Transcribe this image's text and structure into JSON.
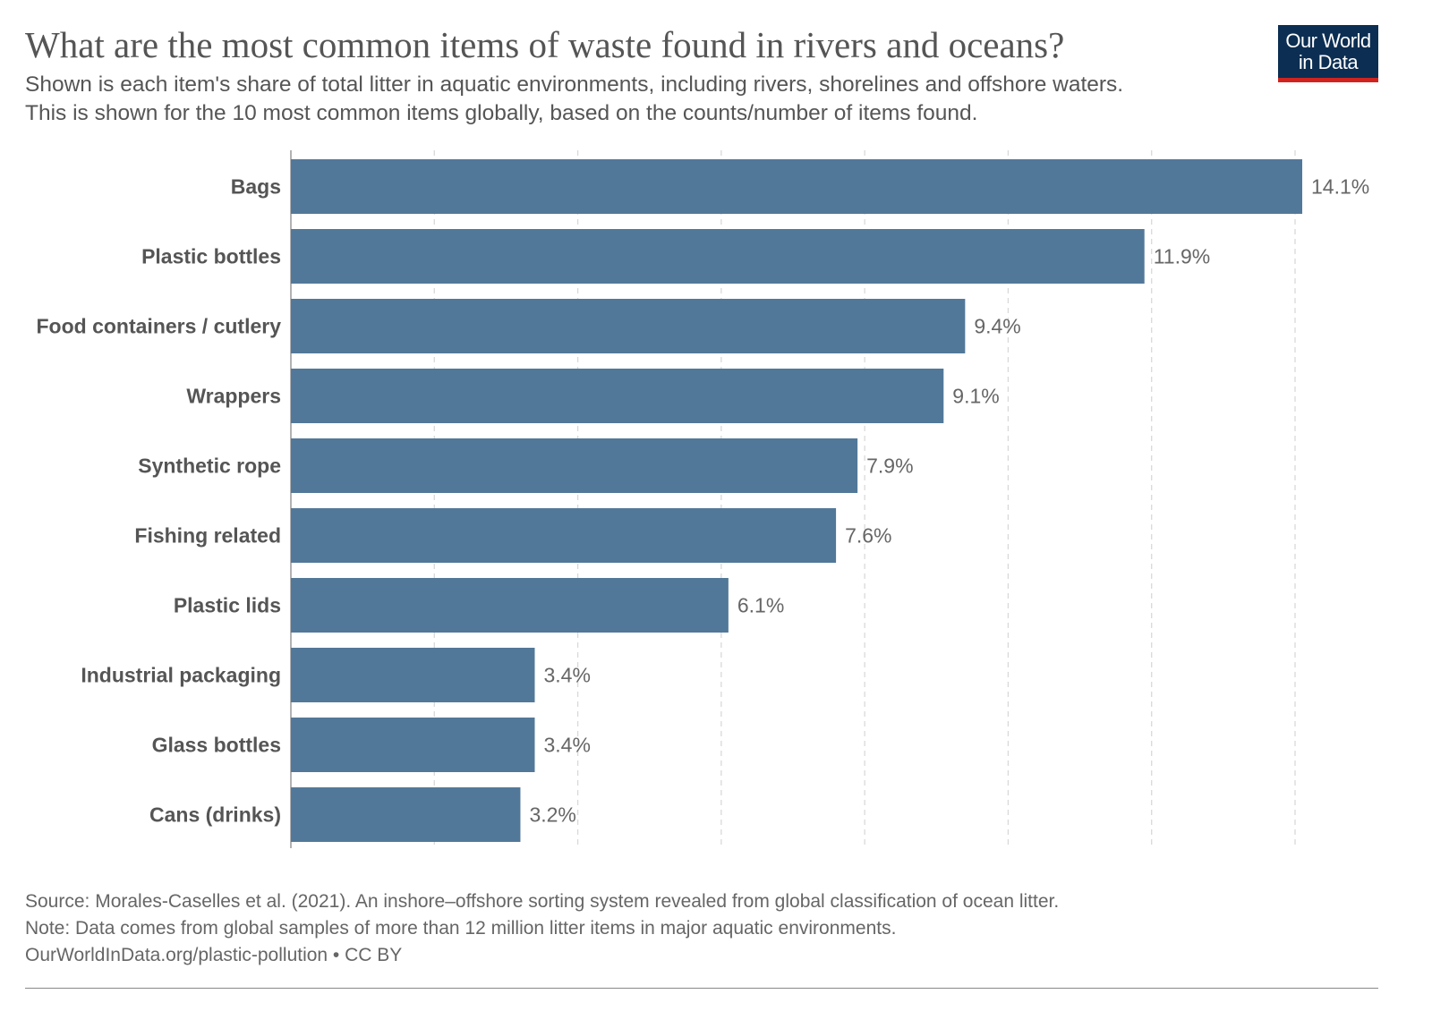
{
  "header": {
    "title": "What are the most common items of waste found in rivers and oceans?",
    "subtitle_line1": "Shown is each item's share of total litter in aquatic environments, including rivers, shorelines and offshore waters.",
    "subtitle_line2": "This is shown for the 10 most common items globally, based on the counts/number of items found."
  },
  "logo": {
    "line1": "Our World",
    "line2": "in Data",
    "bg": "#0c2e52",
    "accent": "#d0231f"
  },
  "chart_data": {
    "type": "bar",
    "orientation": "horizontal",
    "categories": [
      "Bags",
      "Plastic bottles",
      "Food containers / cutlery",
      "Wrappers",
      "Synthetic rope",
      "Fishing related",
      "Plastic lids",
      "Industrial packaging",
      "Glass bottles",
      "Cans (drinks)"
    ],
    "values": [
      14.1,
      11.9,
      9.4,
      9.1,
      7.9,
      7.6,
      6.1,
      3.4,
      3.4,
      3.2
    ],
    "value_labels": [
      "14.1%",
      "11.9%",
      "9.4%",
      "9.1%",
      "7.9%",
      "7.6%",
      "6.1%",
      "3.4%",
      "3.4%",
      "3.2%"
    ],
    "unit": "%",
    "xlim": [
      0,
      14
    ],
    "gridlines": [
      2,
      4,
      6,
      8,
      10,
      12,
      14
    ],
    "grid": true,
    "bar_color": "#527899",
    "title": "What are the most common items of waste found in rivers and oceans?",
    "xlabel": "",
    "ylabel": ""
  },
  "footer": {
    "source": "Source: Morales-Caselles et al. (2021). An inshore–offshore sorting system revealed from global classification of ocean litter.",
    "note": "Note: Data comes from global samples of more than 12 million litter items in major aquatic environments.",
    "url": "OurWorldInData.org/plastic-pollution • CC BY"
  }
}
